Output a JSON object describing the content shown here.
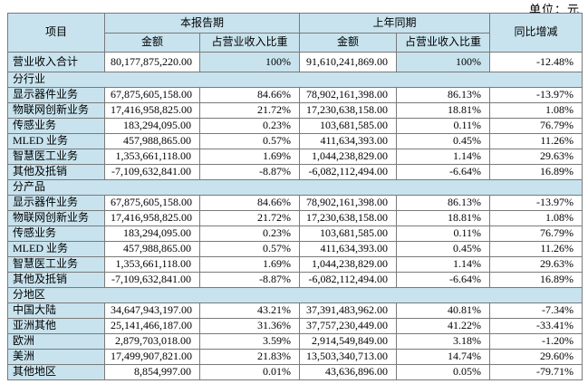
{
  "unit_label": "单位：元",
  "colors": {
    "header_bg": "#c8e3ee",
    "border": "#7a7a7a",
    "border_dark": "#5a5a5a"
  },
  "header": {
    "item": "项目",
    "current_period": "本报告期",
    "prior_period": "上年同期",
    "amount": "金额",
    "ratio": "占营业收入比重",
    "yoy": "同比增减"
  },
  "total_row": {
    "label": "营业收入合计",
    "cur_amount": "80,177,875,220.00",
    "cur_ratio": "100%",
    "prior_amount": "91,610,241,869.00",
    "prior_ratio": "100%",
    "yoy": "-12.48%"
  },
  "sections": [
    {
      "title": "分行业",
      "rows": [
        {
          "label": "显示器件业务",
          "cur_amount": "67,875,605,158.00",
          "cur_ratio": "84.66%",
          "prior_amount": "78,902,161,398.00",
          "prior_ratio": "86.13%",
          "yoy": "-13.97%"
        },
        {
          "label": "物联网创新业务",
          "cur_amount": "17,416,958,825.00",
          "cur_ratio": "21.72%",
          "prior_amount": "17,230,638,158.00",
          "prior_ratio": "18.81%",
          "yoy": "1.08%"
        },
        {
          "label": "传感业务",
          "cur_amount": "183,294,095.00",
          "cur_ratio": "0.23%",
          "prior_amount": "103,681,585.00",
          "prior_ratio": "0.11%",
          "yoy": "76.79%"
        },
        {
          "label": "MLED 业务",
          "cur_amount": "457,988,865.00",
          "cur_ratio": "0.57%",
          "prior_amount": "411,634,393.00",
          "prior_ratio": "0.45%",
          "yoy": "11.26%"
        },
        {
          "label": "智慧医工业务",
          "cur_amount": "1,353,661,118.00",
          "cur_ratio": "1.69%",
          "prior_amount": "1,044,238,829.00",
          "prior_ratio": "1.14%",
          "yoy": "29.63%"
        },
        {
          "label": "其他及抵销",
          "cur_amount": "-7,109,632,841.00",
          "cur_ratio": "-8.87%",
          "prior_amount": "-6,082,112,494.00",
          "prior_ratio": "-6.64%",
          "yoy": "16.89%"
        }
      ]
    },
    {
      "title": "分产品",
      "rows": [
        {
          "label": "显示器件业务",
          "cur_amount": "67,875,605,158.00",
          "cur_ratio": "84.66%",
          "prior_amount": "78,902,161,398.00",
          "prior_ratio": "86.13%",
          "yoy": "-13.97%"
        },
        {
          "label": "物联网创新业务",
          "cur_amount": "17,416,958,825.00",
          "cur_ratio": "21.72%",
          "prior_amount": "17,230,638,158.00",
          "prior_ratio": "18.81%",
          "yoy": "1.08%"
        },
        {
          "label": "传感业务",
          "cur_amount": "183,294,095.00",
          "cur_ratio": "0.23%",
          "prior_amount": "103,681,585.00",
          "prior_ratio": "0.11%",
          "yoy": "76.79%"
        },
        {
          "label": "MLED 业务",
          "cur_amount": "457,988,865.00",
          "cur_ratio": "0.57%",
          "prior_amount": "411,634,393.00",
          "prior_ratio": "0.45%",
          "yoy": "11.26%"
        },
        {
          "label": "智慧医工业务",
          "cur_amount": "1,353,661,118.00",
          "cur_ratio": "1.69%",
          "prior_amount": "1,044,238,829.00",
          "prior_ratio": "1.14%",
          "yoy": "29.63%"
        },
        {
          "label": "其他及抵销",
          "cur_amount": "-7,109,632,841.00",
          "cur_ratio": "-8.87%",
          "prior_amount": "-6,082,112,494.00",
          "prior_ratio": "-6.64%",
          "yoy": "16.89%"
        }
      ]
    },
    {
      "title": "分地区",
      "rows": [
        {
          "label": "中国大陆",
          "cur_amount": "34,647,943,197.00",
          "cur_ratio": "43.21%",
          "prior_amount": "37,391,483,962.00",
          "prior_ratio": "40.81%",
          "yoy": "-7.34%"
        },
        {
          "label": "亚洲其他",
          "cur_amount": "25,141,466,187.00",
          "cur_ratio": "31.36%",
          "prior_amount": "37,757,230,449.00",
          "prior_ratio": "41.22%",
          "yoy": "-33.41%"
        },
        {
          "label": "欧洲",
          "cur_amount": "2,879,703,018.00",
          "cur_ratio": "3.59%",
          "prior_amount": "2,914,549,849.00",
          "prior_ratio": "3.18%",
          "yoy": "-1.20%"
        },
        {
          "label": "美洲",
          "cur_amount": "17,499,907,821.00",
          "cur_ratio": "21.83%",
          "prior_amount": "13,503,340,713.00",
          "prior_ratio": "14.74%",
          "yoy": "29.60%"
        },
        {
          "label": "其他地区",
          "cur_amount": "8,854,997.00",
          "cur_ratio": "0.01%",
          "prior_amount": "43,636,896.00",
          "prior_ratio": "0.05%",
          "yoy": "-79.71%"
        }
      ]
    }
  ]
}
